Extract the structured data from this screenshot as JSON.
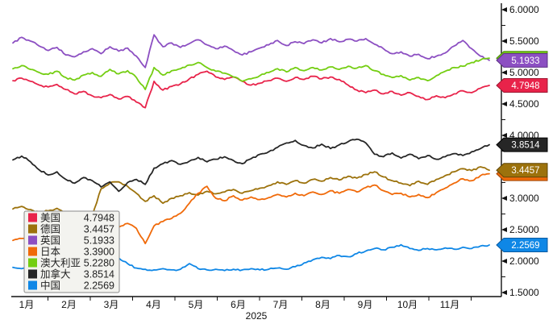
{
  "chart_data": {
    "type": "line",
    "title": "",
    "year_label": "2025",
    "x_tick_labels": [
      "1月",
      "2月",
      "3月",
      "4月",
      "5月",
      "6月",
      "7月",
      "8月",
      "9月",
      "10月",
      "11月"
    ],
    "y_axis": {
      "min": 1.5,
      "max": 6.0,
      "major_step": 0.5,
      "minor_step": 0.25,
      "tick_labels": [
        "6.0000",
        "5.5000",
        "5.0000",
        "4.5000",
        "4.0000",
        "3.5000",
        "3.0000",
        "2.5000",
        "2.0000",
        "1.5000"
      ],
      "side": "right"
    },
    "legend_position": "bottom-left",
    "axis_color": "#111111",
    "badge_draw_order": [
      "au",
      "uk",
      "jp",
      "de",
      "us",
      "ca",
      "cn"
    ],
    "series": [
      {
        "id": "us",
        "name": "美国",
        "value_label": "4.7948",
        "color": "#E8234A",
        "dark": "#9E1430",
        "values": [
          4.87,
          4.91,
          4.86,
          4.8,
          4.77,
          4.81,
          4.73,
          4.66,
          4.7,
          4.63,
          4.6,
          4.65,
          4.58,
          4.62,
          4.53,
          4.44,
          4.86,
          4.72,
          4.78,
          4.82,
          4.9,
          4.97,
          5.02,
          4.93,
          4.89,
          4.93,
          4.86,
          4.8,
          4.83,
          4.87,
          4.91,
          4.86,
          4.92,
          4.89,
          4.94,
          4.9,
          4.93,
          4.89,
          4.8,
          4.72,
          4.68,
          4.72,
          4.66,
          4.7,
          4.64,
          4.68,
          4.62,
          4.57,
          4.63,
          4.6,
          4.66,
          4.71,
          4.68,
          4.75,
          4.7948
        ]
      },
      {
        "id": "de",
        "name": "德国",
        "value_label": "3.4457",
        "color": "#9C720C",
        "dark": "#5F4506",
        "values": [
          2.83,
          2.87,
          2.82,
          2.78,
          2.8,
          2.84,
          2.76,
          2.71,
          2.79,
          2.72,
          3.15,
          3.24,
          3.26,
          3.19,
          3.08,
          2.95,
          3.04,
          2.92,
          3.0,
          3.04,
          3.09,
          3.05,
          3.11,
          3.07,
          3.1,
          3.14,
          3.08,
          3.12,
          3.16,
          3.2,
          3.26,
          3.22,
          3.28,
          3.24,
          3.3,
          3.27,
          3.33,
          3.29,
          3.35,
          3.32,
          3.38,
          3.42,
          3.34,
          3.28,
          3.24,
          3.2,
          3.27,
          3.22,
          3.3,
          3.36,
          3.42,
          3.47,
          3.44,
          3.5,
          3.4457
        ]
      },
      {
        "id": "uk",
        "name": "英国",
        "value_label": "5.1933",
        "color": "#8C4FC2",
        "dark": "#5C2F85",
        "values": [
          5.47,
          5.56,
          5.5,
          5.42,
          5.35,
          5.4,
          5.28,
          5.25,
          5.33,
          5.38,
          5.3,
          5.41,
          5.34,
          5.39,
          5.26,
          5.08,
          5.6,
          5.41,
          5.47,
          5.4,
          5.46,
          5.52,
          5.44,
          5.38,
          5.42,
          5.35,
          5.28,
          5.33,
          5.39,
          5.44,
          5.51,
          5.43,
          5.49,
          5.46,
          5.52,
          5.47,
          5.54,
          5.49,
          5.53,
          5.5,
          5.54,
          5.45,
          5.38,
          5.3,
          5.33,
          5.26,
          5.29,
          5.22,
          5.26,
          5.31,
          5.42,
          5.51,
          5.38,
          5.26,
          5.1933
        ]
      },
      {
        "id": "jp",
        "name": "日本",
        "value_label": "3.3900",
        "color": "#F06A0A",
        "dark": "#9E4405",
        "values": [
          2.33,
          2.36,
          2.32,
          2.38,
          2.36,
          2.42,
          2.39,
          2.45,
          2.43,
          2.48,
          2.53,
          2.58,
          2.54,
          2.6,
          2.52,
          2.28,
          2.56,
          2.63,
          2.68,
          2.76,
          2.92,
          3.08,
          3.19,
          3.0,
          2.96,
          3.04,
          2.97,
          3.02,
          2.98,
          3.01,
          3.06,
          3.02,
          3.08,
          3.04,
          3.1,
          3.06,
          3.12,
          3.08,
          3.14,
          3.1,
          3.17,
          3.21,
          3.12,
          3.06,
          3.08,
          3.02,
          3.06,
          3.01,
          3.09,
          3.16,
          3.24,
          3.31,
          3.28,
          3.36,
          3.39
        ]
      },
      {
        "id": "au",
        "name": "澳大利亚",
        "value_label": "5.2280",
        "color": "#74CE12",
        "dark": "#4A8A08",
        "values": [
          5.06,
          5.11,
          5.05,
          5.0,
          4.97,
          5.02,
          4.92,
          4.88,
          4.96,
          5.0,
          4.94,
          5.05,
          4.98,
          5.03,
          4.92,
          4.73,
          5.08,
          4.96,
          5.03,
          5.06,
          5.12,
          5.16,
          5.08,
          5.02,
          4.99,
          4.93,
          4.86,
          4.9,
          4.95,
          5.0,
          5.06,
          5.01,
          5.08,
          5.03,
          5.08,
          5.04,
          5.09,
          5.05,
          5.1,
          5.07,
          5.11,
          5.03,
          4.97,
          4.92,
          4.95,
          4.88,
          4.92,
          4.87,
          4.95,
          5.02,
          5.08,
          5.1,
          5.16,
          5.2,
          5.228
        ]
      },
      {
        "id": "ca",
        "name": "加拿大",
        "value_label": "3.8514",
        "color": "#262626",
        "dark": "#000000",
        "values": [
          3.61,
          3.67,
          3.58,
          3.45,
          3.37,
          3.42,
          3.3,
          3.24,
          3.33,
          3.28,
          3.18,
          3.26,
          3.11,
          3.25,
          3.3,
          3.22,
          3.48,
          3.55,
          3.6,
          3.54,
          3.59,
          3.65,
          3.58,
          3.62,
          3.66,
          3.6,
          3.55,
          3.63,
          3.7,
          3.74,
          3.81,
          3.88,
          3.92,
          3.84,
          3.8,
          3.86,
          3.79,
          3.85,
          3.9,
          3.94,
          3.88,
          3.7,
          3.66,
          3.72,
          3.64,
          3.7,
          3.63,
          3.68,
          3.62,
          3.66,
          3.71,
          3.68,
          3.74,
          3.79,
          3.8514
        ]
      },
      {
        "id": "cn",
        "name": "中国",
        "value_label": "2.2569",
        "color": "#0F87E6",
        "dark": "#0A5AA0",
        "values": [
          1.9,
          1.88,
          1.93,
          1.95,
          1.94,
          1.97,
          1.95,
          1.99,
          2.01,
          2.03,
          2.06,
          2.04,
          2.05,
          1.96,
          1.89,
          1.87,
          1.86,
          1.88,
          1.86,
          1.87,
          1.96,
          1.88,
          1.86,
          1.87,
          1.85,
          1.87,
          1.86,
          1.88,
          1.86,
          1.87,
          1.89,
          1.87,
          1.91,
          1.97,
          2.02,
          2.06,
          2.04,
          2.09,
          2.07,
          2.12,
          2.16,
          2.2,
          2.18,
          2.22,
          2.26,
          2.2,
          2.17,
          2.2,
          2.18,
          2.21,
          2.19,
          2.22,
          2.2,
          2.24,
          2.2569
        ]
      }
    ]
  }
}
